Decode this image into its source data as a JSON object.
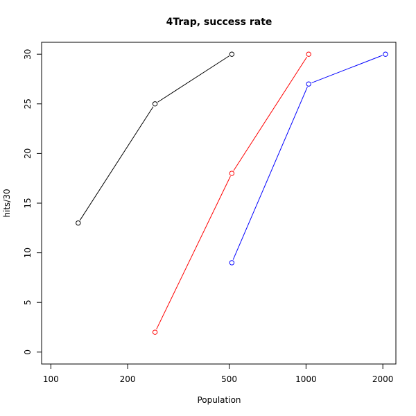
{
  "chart_data": {
    "type": "line",
    "title": "4Trap, success rate",
    "xlabel": "Population",
    "ylabel": "hits/30",
    "x_scale": "log",
    "xlim": [
      92,
      2250
    ],
    "ylim": [
      -1.2,
      31.2
    ],
    "x_ticks": [
      100,
      200,
      500,
      1000,
      2000
    ],
    "y_ticks": [
      0,
      5,
      10,
      15,
      20,
      25,
      30
    ],
    "grid": false,
    "legend": "none",
    "series": [
      {
        "color": "#000000",
        "x": [
          128,
          256,
          512
        ],
        "y": [
          13,
          25,
          30
        ]
      },
      {
        "color": "#ff0000",
        "x": [
          256,
          512,
          1024
        ],
        "y": [
          2,
          18,
          30
        ]
      },
      {
        "color": "#0000ff",
        "x": [
          512,
          1024,
          2048
        ],
        "y": [
          9,
          27,
          30
        ]
      }
    ]
  }
}
